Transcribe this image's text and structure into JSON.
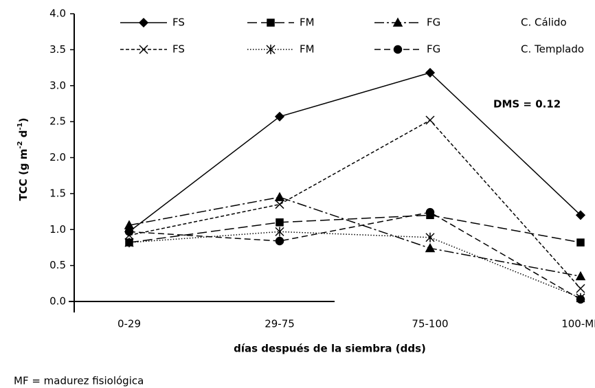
{
  "chart_data": {
    "type": "line",
    "x_label": "días después de la siembra (dds)",
    "y_label_parts": [
      "TCC (g m",
      "-2",
      " d",
      "-1",
      ")"
    ],
    "annotation": "DMS = 0.12",
    "footnote": "MF = madurez fisiológica",
    "legend_rows": [
      "C. Cálido",
      "C. Templado"
    ],
    "categories": [
      "0-29",
      "29-75",
      "75-100",
      "100-MF"
    ],
    "ylim": [
      0,
      4
    ],
    "yticks": [
      {
        "value": 0,
        "label": "0.0"
      },
      0.5,
      {
        "value": 1,
        "label": "1.0"
      },
      1.5,
      {
        "value": 2,
        "label": "2.0"
      },
      2.5,
      {
        "value": 3,
        "label": "3.0"
      },
      3.5,
      {
        "value": 4,
        "label": "4.0"
      }
    ],
    "series": [
      {
        "name": "FS",
        "color": "#000000",
        "marker": "diamond",
        "dash": "none",
        "values": [
          0.97,
          2.57,
          3.18,
          1.2
        ]
      },
      {
        "name": "FM",
        "color": "#000000",
        "marker": "square",
        "dash": "14 6",
        "values": [
          0.82,
          1.1,
          1.2,
          0.82
        ]
      },
      {
        "name": "FG",
        "color": "#000000",
        "marker": "triangle",
        "dash": "14 4 3 4",
        "values": [
          1.06,
          1.45,
          0.74,
          0.35
        ]
      },
      {
        "name": "FS",
        "color": "#000000",
        "marker": "x",
        "dash": "5 3",
        "values": [
          0.92,
          1.35,
          2.52,
          0.18
        ]
      },
      {
        "name": "FM",
        "color": "#000000",
        "marker": "asterisk",
        "dash": "1.5 2.5",
        "values": [
          0.82,
          0.97,
          0.89,
          0.05
        ]
      },
      {
        "name": "FG",
        "color": "#000000",
        "marker": "circle",
        "dash": "9 5",
        "values": [
          0.97,
          0.84,
          1.24,
          0.03
        ]
      }
    ]
  }
}
